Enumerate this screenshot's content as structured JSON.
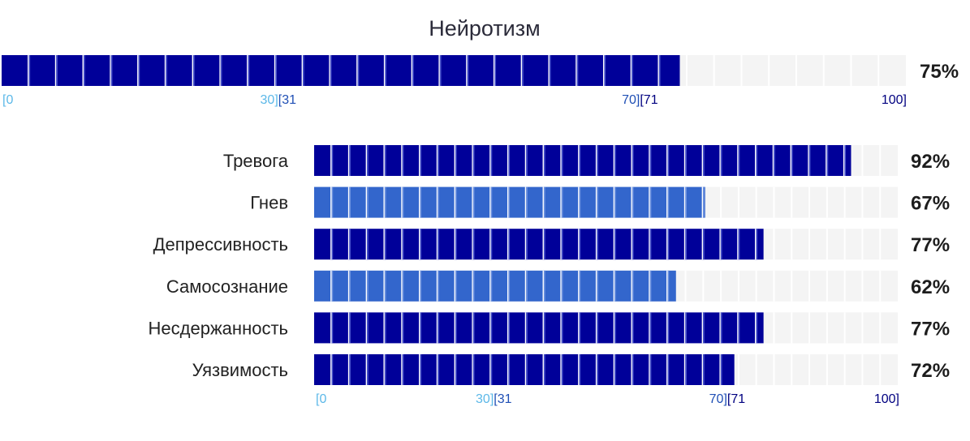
{
  "colors": {
    "dark": "#000099",
    "light": "#3366cc",
    "track": "#f4f4f4",
    "seg_divider_dark": "#4a55cc",
    "seg_divider_light": "#6e93e0",
    "tick_low": "#5cb8e8",
    "tick_mid": "#1f4fb5",
    "tick_high": "#000080"
  },
  "chart_data": {
    "type": "bar",
    "orientation": "horizontal",
    "title": "Нейротизм",
    "xlim": [
      0,
      100
    ],
    "segments": 33,
    "total": {
      "value": 75,
      "value_label": "75%",
      "color": "dark"
    },
    "tick_labels": [
      {
        "text": "[0",
        "tone": "tick_low"
      },
      {
        "text": "30]",
        "tone": "tick_low"
      },
      {
        "text": "[31",
        "tone": "tick_mid"
      },
      {
        "text": "70]",
        "tone": "tick_mid"
      },
      {
        "text": "[71",
        "tone": "tick_high"
      },
      {
        "text": "100]",
        "tone": "tick_high"
      }
    ],
    "tick_positions": [
      0,
      30,
      31,
      70,
      71,
      100
    ],
    "categories": [
      "Тревога",
      "Гнев",
      "Депрессивность",
      "Самосознание",
      "Несдержанность",
      "Уязвимость"
    ],
    "values": [
      92,
      67,
      77,
      62,
      77,
      72
    ],
    "value_labels": [
      "92%",
      "67%",
      "77%",
      "62%",
      "77%",
      "72%"
    ],
    "bar_colors": [
      "dark",
      "light",
      "dark",
      "light",
      "dark",
      "dark"
    ]
  }
}
